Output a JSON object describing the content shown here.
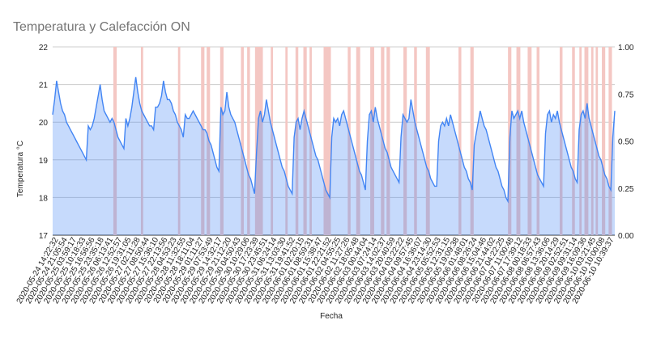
{
  "chart_data": {
    "type": "area",
    "title": "Temperatura y Calefacción ON",
    "xlabel": "Fecha",
    "ylabel": "Temperatura °C",
    "ylim": [
      17,
      22
    ],
    "y2lim": [
      0,
      1
    ],
    "y_ticks": [
      "17",
      "18",
      "19",
      "20",
      "21",
      "22"
    ],
    "y2_ticks": [
      "0.00",
      "0.25",
      "0.50",
      "0.75",
      "1.00"
    ],
    "grid": true,
    "x_tick_labels": [
      "2020-05-24 14:22:32",
      "2020-05-24 21:05:54",
      "2020-05-25 03:59:17",
      "2020-05-25 10:18:33",
      "2020-05-25 16:56:56",
      "2020-05-25 23:35:18",
      "2020-05-26 06:13:41",
      "2020-05-26 12:52:57",
      "2020-05-26 19:31:05",
      "2020-05-27 02:11:28",
      "2020-05-27 08:50:44",
      "2020-05-27 15:36:10",
      "2020-05-27 22:13:56",
      "2020-05-28 04:53:23",
      "2020-05-28 11:32:55",
      "2020-05-28 18:11:04",
      "2020-05-29 01:11:27",
      "2020-05-29 07:53:49",
      "2020-05-29 14:32:17",
      "2020-05-29 21:12:20",
      "2020-05-30 04:50:43",
      "2020-05-30 10:29:06",
      "2020-05-30 17:23:39",
      "2020-05-30 23:45:51",
      "2020-05-31 06:24:14",
      "2020-05-31 13:03:30",
      "2020-05-31 19:41:52",
      "2020-06-01 02:20:15",
      "2020-06-01 08:59:31",
      "2020-06-01 15:38:47",
      "2020-06-01 22:21:52",
      "2020-06-02 04:55:25",
      "2020-06-02 11:27:26",
      "2020-06-02 18:05:48",
      "2020-06-03 00:44:04",
      "2020-06-03 07:24:14",
      "2020-06-03 14:02:37",
      "2020-06-03 20:40:59",
      "2020-06-04 03:22:22",
      "2020-06-04 09:57:45",
      "2020-06-04 16:36:07",
      "2020-06-04 23:14:30",
      "2020-06-05 05:52:53",
      "2020-06-05 12:31:15",
      "2020-06-05 19:09:38",
      "2020-06-06 01:48:01",
      "2020-06-06 08:26:24",
      "2020-06-06 15:04:46",
      "2020-06-06 21:44:02",
      "2020-06-07 04:22:25",
      "2020-06-07 11:00:48",
      "2020-06-07 17:39:12",
      "2020-06-08 00:18:33",
      "2020-06-08 06:57:43",
      "2020-06-08 13:36:06",
      "2020-06-08 20:14:29",
      "2020-06-09 02:52:51",
      "2020-06-09 09:31:14",
      "2020-06-09 16:09:36",
      "2020-06-10 03:21:45",
      "2020-06-10 10:00:08",
      "2020-06-10 10:39:37"
    ],
    "series": [
      {
        "type": "area",
        "values": [
          20.2,
          20.6,
          21.1,
          20.8,
          20.5,
          20.3,
          20.2,
          20.0,
          19.9,
          19.8,
          19.7,
          19.6,
          19.5,
          19.4,
          19.3,
          19.2,
          19.1,
          19.0,
          19.9,
          19.8,
          19.9,
          20.1,
          20.4,
          20.7,
          21.0,
          20.6,
          20.3,
          20.2,
          20.1,
          20.0,
          20.1,
          20.0,
          19.8,
          19.6,
          19.5,
          19.4,
          19.3,
          20.1,
          19.9,
          20.1,
          20.4,
          20.8,
          21.2,
          20.8,
          20.5,
          20.3,
          20.2,
          20.1,
          20.0,
          19.9,
          19.9,
          19.8,
          20.4,
          20.4,
          20.5,
          20.7,
          21.1,
          20.8,
          20.6,
          20.6,
          20.5,
          20.3,
          20.2,
          20.0,
          19.9,
          19.8,
          19.6,
          20.2,
          20.1,
          20.1,
          20.2,
          20.3,
          20.2,
          20.1,
          20.0,
          19.9,
          19.8,
          19.8,
          19.7,
          19.5,
          19.4,
          19.2,
          19.0,
          18.8,
          18.7,
          20.4,
          20.2,
          20.3,
          20.8,
          20.4,
          20.2,
          20.1,
          20.0,
          19.8,
          19.6,
          19.4,
          19.2,
          19.0,
          18.8,
          18.6,
          18.5,
          18.3,
          18.1,
          19.2,
          20.1,
          20.3,
          20.0,
          20.2,
          20.6,
          20.3,
          20.0,
          19.8,
          19.6,
          19.4,
          19.2,
          19.0,
          18.8,
          18.7,
          18.5,
          18.3,
          18.2,
          18.1,
          19.6,
          20.0,
          20.1,
          19.8,
          20.1,
          20.3,
          20.1,
          19.9,
          19.7,
          19.5,
          19.3,
          19.1,
          19.0,
          18.8,
          18.6,
          18.4,
          18.2,
          18.1,
          18.0,
          19.6,
          20.1,
          20.0,
          20.1,
          19.9,
          20.2,
          20.3,
          20.1,
          19.9,
          19.7,
          19.5,
          19.3,
          19.1,
          18.9,
          18.7,
          18.6,
          18.4,
          18.2,
          19.5,
          20.2,
          20.3,
          20.0,
          20.4,
          20.1,
          19.9,
          19.7,
          19.5,
          19.3,
          19.2,
          19.0,
          18.8,
          18.7,
          18.6,
          18.5,
          18.4,
          19.6,
          20.2,
          20.1,
          20.0,
          20.1,
          20.6,
          20.3,
          20.0,
          19.8,
          19.6,
          19.4,
          19.2,
          19.0,
          18.8,
          18.7,
          18.5,
          18.4,
          18.3,
          18.3,
          19.5,
          19.9,
          20.0,
          19.9,
          20.1,
          19.9,
          20.2,
          20.0,
          19.8,
          19.6,
          19.4,
          19.2,
          19.0,
          18.8,
          18.7,
          18.5,
          18.4,
          18.2,
          19.4,
          19.7,
          20.0,
          20.3,
          20.1,
          19.9,
          19.8,
          19.6,
          19.4,
          19.2,
          19.0,
          18.8,
          18.7,
          18.5,
          18.3,
          18.2,
          18.0,
          17.9,
          19.6,
          20.3,
          20.1,
          20.2,
          20.3,
          20.1,
          20.3,
          20.0,
          19.8,
          19.6,
          19.4,
          19.2,
          19.0,
          18.8,
          18.6,
          18.5,
          18.4,
          18.3,
          19.7,
          20.2,
          20.3,
          20.0,
          20.2,
          20.1,
          20.3,
          20.0,
          19.8,
          19.6,
          19.4,
          19.2,
          19.0,
          18.8,
          18.7,
          18.5,
          18.4,
          19.8,
          20.2,
          20.3,
          20.1,
          20.5,
          20.1,
          19.9,
          19.7,
          19.5,
          19.3,
          19.1,
          19.0,
          18.8,
          18.6,
          18.5,
          18.3,
          18.2,
          19.6,
          20.3
        ]
      },
      {
        "type": "heating",
        "on_intervals": [
          [
            0.108,
            0.114
          ],
          [
            0.157,
            0.161
          ],
          [
            0.223,
            0.227
          ],
          [
            0.264,
            0.27
          ],
          [
            0.274,
            0.28
          ],
          [
            0.298,
            0.304
          ],
          [
            0.335,
            0.34
          ],
          [
            0.346,
            0.351
          ],
          [
            0.36,
            0.374
          ],
          [
            0.388,
            0.392
          ],
          [
            0.414,
            0.418
          ],
          [
            0.432,
            0.437
          ],
          [
            0.446,
            0.452
          ],
          [
            0.457,
            0.461
          ],
          [
            0.482,
            0.495
          ],
          [
            0.525,
            0.53
          ],
          [
            0.54,
            0.547
          ],
          [
            0.565,
            0.572
          ],
          [
            0.584,
            0.59
          ],
          [
            0.594,
            0.6
          ],
          [
            0.624,
            0.63
          ],
          [
            0.643,
            0.648
          ],
          [
            0.664,
            0.671
          ],
          [
            0.722,
            0.727
          ],
          [
            0.743,
            0.749
          ],
          [
            0.81,
            0.816
          ],
          [
            0.825,
            0.832
          ],
          [
            0.845,
            0.852
          ],
          [
            0.861,
            0.866
          ],
          [
            0.902,
            0.907
          ],
          [
            0.924,
            0.929
          ],
          [
            0.937,
            0.941
          ],
          [
            0.946,
            0.953
          ],
          [
            0.958,
            0.962
          ],
          [
            0.966,
            0.97
          ],
          [
            0.977,
            0.983
          ],
          [
            0.989,
            0.995
          ]
        ]
      }
    ]
  }
}
